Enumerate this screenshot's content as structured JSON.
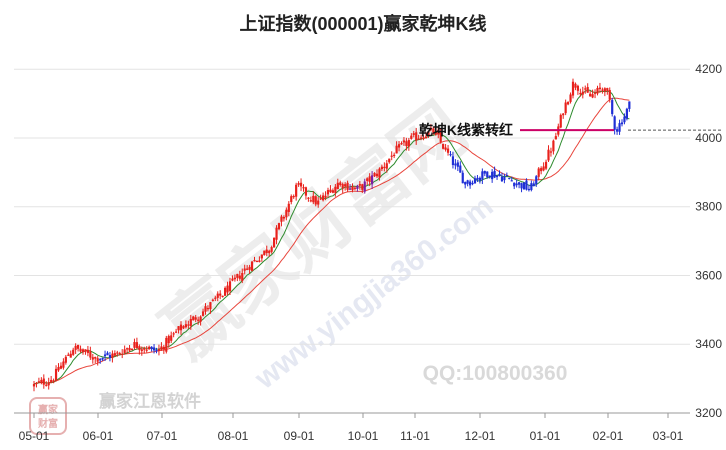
{
  "chart_data": {
    "type": "candlestick",
    "title": "上证指数(000001)赢家乾坤K线",
    "ylim": [
      3200,
      4250
    ],
    "y_ticks": [
      3200,
      3400,
      3600,
      3800,
      4000,
      4200
    ],
    "x_ticks": [
      "05-01",
      "06-01",
      "07-01",
      "08-01",
      "09-01",
      "10-01",
      "11-01",
      "12-01",
      "01-01",
      "02-01",
      "03-01"
    ],
    "grid": true,
    "annotation": "乾坤K线紫转红",
    "reference_level": 4110,
    "colors": {
      "up": "#e8211c",
      "down": "#1f2fd6",
      "purple": "#7b1fa2",
      "ma_short": "#2e8b2e",
      "ma_long": "#e8453c",
      "annotation_line": "#cc0066"
    },
    "close_keypoints": [
      {
        "date": "05-01",
        "close": 3280
      },
      {
        "date": "05-10",
        "close": 3300
      },
      {
        "date": "05-20",
        "close": 3390
      },
      {
        "date": "05-31",
        "close": 3360
      },
      {
        "date": "06-10",
        "close": 3370
      },
      {
        "date": "06-18",
        "close": 3400
      },
      {
        "date": "06-30",
        "close": 3380
      },
      {
        "date": "07-08",
        "close": 3440
      },
      {
        "date": "07-18",
        "close": 3490
      },
      {
        "date": "07-28",
        "close": 3550
      },
      {
        "date": "08-07",
        "close": 3620
      },
      {
        "date": "08-18",
        "close": 3680
      },
      {
        "date": "08-31",
        "close": 3860
      },
      {
        "date": "09-10",
        "close": 3810
      },
      {
        "date": "09-20",
        "close": 3870
      },
      {
        "date": "09-30",
        "close": 3850
      },
      {
        "date": "10-10",
        "close": 3900
      },
      {
        "date": "10-20",
        "close": 3960
      },
      {
        "date": "10-31",
        "close": 4000
      },
      {
        "date": "11-10",
        "close": 4020
      },
      {
        "date": "11-17",
        "close": 3950
      },
      {
        "date": "11-25",
        "close": 3870
      },
      {
        "date": "12-05",
        "close": 3900
      },
      {
        "date": "12-15",
        "close": 3880
      },
      {
        "date": "12-25",
        "close": 3850
      },
      {
        "date": "01-05",
        "close": 3980
      },
      {
        "date": "01-10",
        "close": 4080
      },
      {
        "date": "01-15",
        "close": 4160
      },
      {
        "date": "01-23",
        "close": 4120
      },
      {
        "date": "01-31",
        "close": 4150
      },
      {
        "date": "02-05",
        "close": 4020
      },
      {
        "date": "02-10",
        "close": 4070
      },
      {
        "date": "02-13",
        "close": 4110
      }
    ]
  },
  "watermarks": {
    "big": "赢家财富网",
    "site": "www.yingjia360.com",
    "software": "赢家江恩软件",
    "qq": "QQ:100800360",
    "logo_top": "赢家",
    "logo_bottom": "财富"
  }
}
